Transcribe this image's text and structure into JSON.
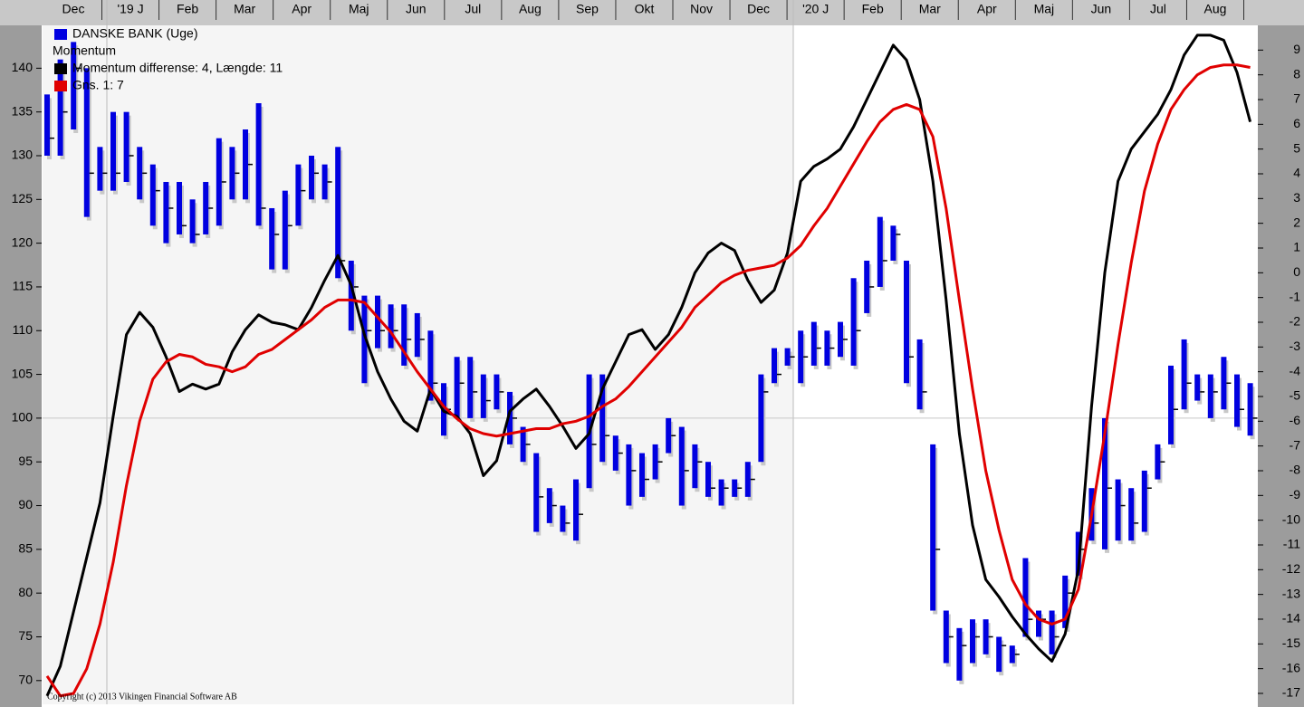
{
  "chart_data": {
    "type": "ohlc",
    "x_labels": [
      "Dec",
      "'19 J",
      "Feb",
      "Mar",
      "Apr",
      "Maj",
      "Jun",
      "Jul",
      "Aug",
      "Sep",
      "Okt",
      "Nov",
      "Dec",
      "'20 J",
      "Feb",
      "Mar",
      "Apr",
      "Maj",
      "Jun",
      "Jul",
      "Aug"
    ],
    "price": {
      "name": "DANSKE BANK (Uge)",
      "color": "#0000e0",
      "high": [
        137,
        141,
        143,
        140,
        131,
        135,
        135,
        131,
        129,
        127,
        127,
        125,
        127,
        132,
        131,
        133,
        136,
        124,
        126,
        129,
        130,
        129,
        131,
        118,
        114,
        114,
        113,
        113,
        112,
        110,
        104,
        107,
        107,
        105,
        105,
        103,
        99,
        96,
        92,
        90,
        93,
        105,
        105,
        98,
        97,
        96,
        97,
        100,
        99,
        97,
        95,
        93,
        93,
        95,
        105,
        108,
        108,
        110,
        111,
        110,
        111,
        116,
        118,
        123,
        122,
        118,
        109,
        97,
        78,
        76,
        77,
        77,
        75,
        74,
        84,
        78,
        78,
        82,
        87,
        92,
        100,
        93,
        92,
        94,
        97,
        106,
        109,
        105,
        105,
        107,
        105,
        104
      ],
      "low": [
        130,
        130,
        133,
        123,
        126,
        126,
        127,
        125,
        122,
        120,
        121,
        120,
        121,
        122,
        125,
        125,
        122,
        117,
        117,
        122,
        125,
        125,
        116,
        110,
        104,
        108,
        108,
        106,
        107,
        102,
        98,
        100,
        100,
        100,
        101,
        97,
        95,
        87,
        88,
        87,
        86,
        92,
        95,
        94,
        90,
        91,
        93,
        96,
        90,
        92,
        91,
        90,
        91,
        91,
        95,
        104,
        106,
        104,
        106,
        106,
        107,
        106,
        112,
        115,
        118,
        104,
        101,
        78,
        72,
        70,
        72,
        73,
        71,
        72,
        75,
        75,
        73,
        76,
        82,
        86,
        85,
        86,
        86,
        87,
        93,
        97,
        101,
        102,
        100,
        101,
        99,
        98
      ],
      "close": [
        132,
        135,
        140,
        128,
        128,
        128,
        130,
        128,
        126,
        124,
        122,
        121,
        124,
        127,
        128,
        129,
        124,
        121,
        122,
        126,
        128,
        127,
        118,
        115,
        110,
        110,
        110,
        109,
        109,
        104,
        101,
        104,
        103,
        102,
        103,
        100,
        97,
        91,
        90,
        88,
        89,
        97,
        98,
        96,
        94,
        93,
        95,
        98,
        94,
        95,
        92,
        92,
        92,
        93,
        103,
        105,
        107,
        107,
        108,
        108,
        109,
        110,
        115,
        118,
        121,
        107,
        103,
        85,
        75,
        74,
        75,
        75,
        74,
        73,
        77,
        77,
        75,
        80,
        85,
        88,
        92,
        90,
        88,
        92,
        95,
        101,
        104,
        103,
        103,
        104,
        101,
        100
      ]
    },
    "indicator_title": "Momentum",
    "series": [
      {
        "name": "Momentum differense: 4, Længde: 11",
        "color": "#000000",
        "axis": "y2",
        "values": [
          -17.1,
          -15.9,
          -13.7,
          -11.5,
          -9.3,
          -5.8,
          -2.5,
          -1.6,
          -2.2,
          -3.4,
          -4.8,
          -4.5,
          -4.7,
          -4.5,
          -3.2,
          -2.3,
          -1.7,
          -2.0,
          -2.1,
          -2.3,
          -1.4,
          -0.3,
          0.7,
          -0.5,
          -2.5,
          -4.0,
          -5.1,
          -6.0,
          -6.4,
          -4.7,
          -5.6,
          -5.8,
          -6.5,
          -8.2,
          -7.6,
          -5.6,
          -5.1,
          -4.7,
          -5.4,
          -6.2,
          -7.1,
          -6.5,
          -4.7,
          -3.6,
          -2.5,
          -2.3,
          -3.1,
          -2.5,
          -1.4,
          0.0,
          0.8,
          1.2,
          0.9,
          -0.3,
          -1.2,
          -0.7,
          0.8,
          3.7,
          4.3,
          4.6,
          5.0,
          5.9,
          7.0,
          8.1,
          9.2,
          8.6,
          7.0,
          3.7,
          -1.1,
          -6.5,
          -10.2,
          -12.4,
          -13.1,
          -13.9,
          -14.6,
          -15.2,
          -15.7,
          -14.6,
          -12.0,
          -5.4,
          0.0,
          3.7,
          5.0,
          5.7,
          6.4,
          7.4,
          8.8,
          9.6,
          9.6,
          9.4,
          8.1,
          6.1
        ]
      },
      {
        "name": "Gns. 1: 7",
        "color": "#e00000",
        "axis": "y2",
        "values": [
          -16.3,
          -17.1,
          -17.0,
          -16.0,
          -14.2,
          -11.7,
          -8.6,
          -6.0,
          -4.3,
          -3.6,
          -3.3,
          -3.4,
          -3.7,
          -3.8,
          -4.0,
          -3.8,
          -3.3,
          -3.1,
          -2.7,
          -2.3,
          -1.9,
          -1.4,
          -1.1,
          -1.1,
          -1.2,
          -1.8,
          -2.4,
          -3.2,
          -4.0,
          -4.7,
          -5.4,
          -5.9,
          -6.3,
          -6.5,
          -6.6,
          -6.5,
          -6.4,
          -6.3,
          -6.3,
          -6.1,
          -6.0,
          -5.8,
          -5.4,
          -5.1,
          -4.6,
          -4.0,
          -3.4,
          -2.8,
          -2.2,
          -1.4,
          -0.9,
          -0.4,
          -0.1,
          0.1,
          0.2,
          0.3,
          0.6,
          1.1,
          1.9,
          2.6,
          3.5,
          4.4,
          5.3,
          6.1,
          6.6,
          6.8,
          6.6,
          5.5,
          2.6,
          -1.1,
          -4.7,
          -8.0,
          -10.4,
          -12.4,
          -13.4,
          -14.0,
          -14.2,
          -14.0,
          -12.8,
          -9.8,
          -6.5,
          -2.9,
          0.4,
          3.3,
          5.2,
          6.6,
          7.4,
          8.0,
          8.3,
          8.4,
          8.4,
          8.3
        ]
      }
    ],
    "ylim": [
      67.6,
      144.9
    ],
    "yticks": [
      70,
      75,
      80,
      85,
      90,
      95,
      100,
      105,
      110,
      115,
      120,
      125,
      130,
      135,
      140
    ],
    "y2lim": [
      -17.33,
      10
    ],
    "y2ticks": [
      -17,
      -16,
      -15,
      -14,
      -13,
      -12,
      -11,
      -10,
      -9,
      -8,
      -7,
      -6,
      -5,
      -4,
      -3,
      -2,
      -1,
      0,
      1,
      2,
      3,
      4,
      5,
      6,
      7,
      8,
      9
    ],
    "reference_line": 100,
    "copyright": "Copyright (c) 2013 Vikingen Financial Software AB"
  }
}
